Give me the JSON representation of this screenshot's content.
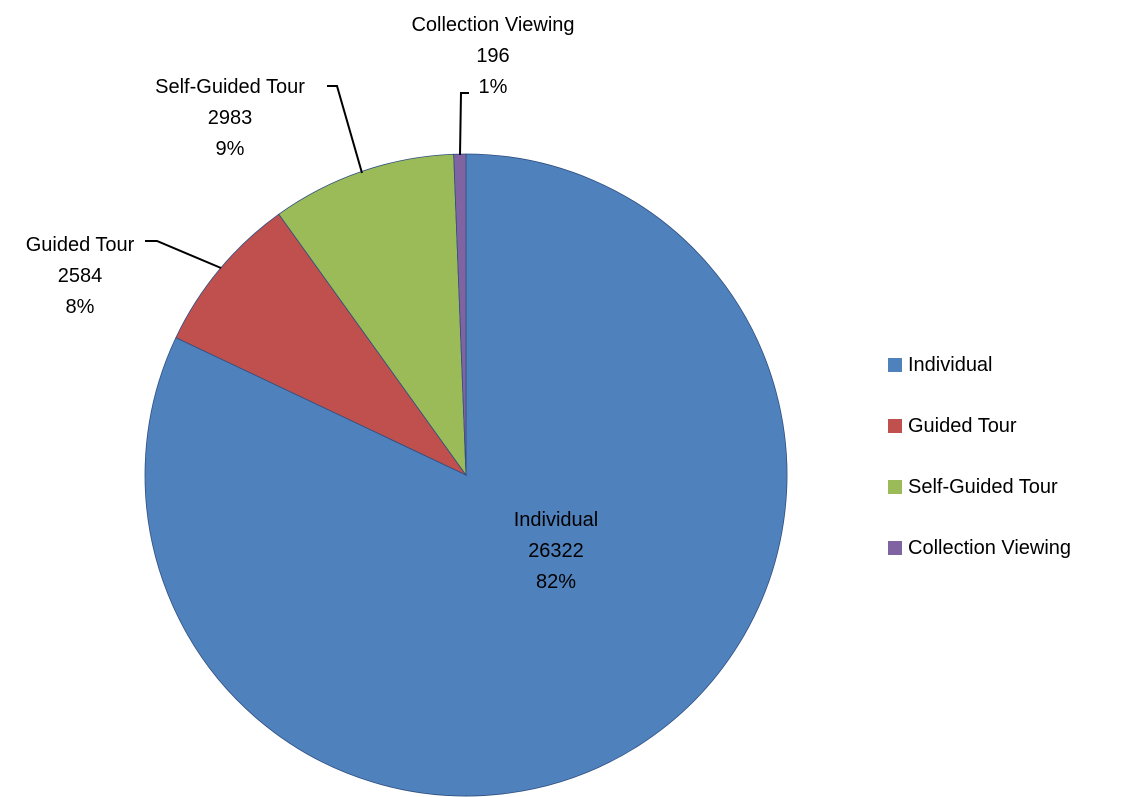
{
  "chart_data": {
    "type": "pie",
    "categories": [
      "Individual",
      "Guided Tour",
      "Self-Guided Tour",
      "Collection Viewing"
    ],
    "values": [
      26322,
      2584,
      2983,
      196
    ],
    "percent_labels": [
      "82%",
      "8%",
      "9%",
      "1%"
    ],
    "colors": [
      "#4F81BD",
      "#C0504D",
      "#9BBB59",
      "#8064A2"
    ],
    "start_angle": "12 o'clock",
    "direction": "clockwise",
    "legend": {
      "position": "right",
      "entries": [
        "Individual",
        "Guided Tour",
        "Self-Guided Tour",
        "Collection Viewing"
      ]
    },
    "title": ""
  }
}
